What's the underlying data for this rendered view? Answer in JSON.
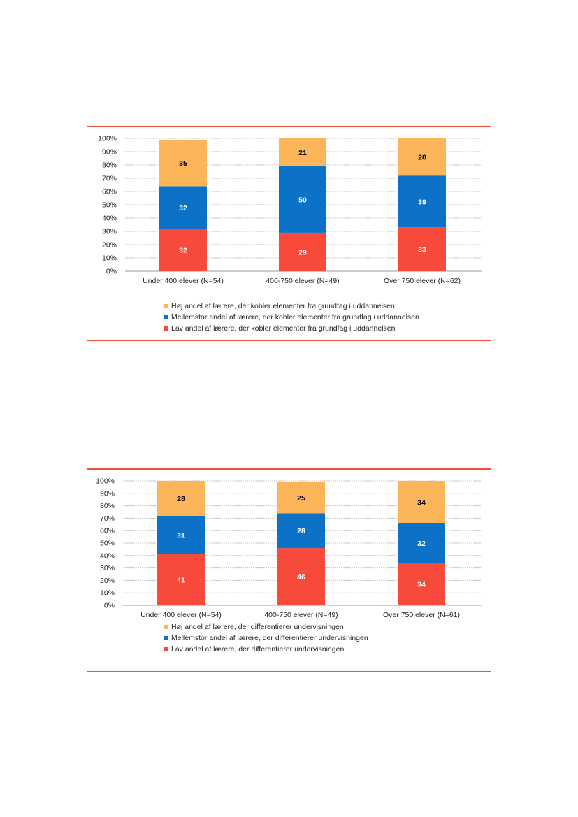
{
  "colors": {
    "hoj": "#fdb55a",
    "mellem": "#0c72c8",
    "lav": "#f74a3b",
    "grid": "#c8c8c8",
    "axis": "#999999",
    "rule": "#f04e3e"
  },
  "chart_data": [
    {
      "type": "bar",
      "stacked": true,
      "categories": [
        "Under 400 elever (N=54)",
        "400-750 elever (N=49)",
        "Over 750 elever (N=62)"
      ],
      "series": [
        {
          "name": "Lav andel af lærere, der kobler elementer fra grundfag i uddannelsen",
          "values": [
            32,
            29,
            33
          ],
          "color_key": "lav",
          "label_color": "#ffffff"
        },
        {
          "name": "Mellemstor andel af lærere,  der kobler elementer fra grundfag i uddannelsen",
          "values": [
            32,
            50,
            39
          ],
          "color_key": "mellem",
          "label_color": "#ffffff"
        },
        {
          "name": "Høj andel af lærere, der kobler elementer fra grundfag i uddannelsen",
          "values": [
            35,
            21,
            28
          ],
          "color_key": "hoj",
          "label_color": "#000000"
        }
      ],
      "legend_order": [
        2,
        1,
        0
      ],
      "ylim": [
        0,
        100
      ],
      "yticks": [
        "0%",
        "10%",
        "20%",
        "30%",
        "40%",
        "50%",
        "60%",
        "70%",
        "80%",
        "90%",
        "100%"
      ],
      "grid": true,
      "legend_position": "bottom"
    },
    {
      "type": "bar",
      "stacked": true,
      "categories": [
        "Under 400 elever (N=54)",
        "400-750 elever (N=49)",
        "Over 750 elever (N=61)"
      ],
      "series": [
        {
          "name": "Lav andel af lærere, der differentierer undervisningen",
          "values": [
            41,
            46,
            34
          ],
          "color_key": "lav",
          "label_color": "#ffffff"
        },
        {
          "name": "Mellemstor andel af lærere,  der differentierer undervisningen",
          "values": [
            31,
            28,
            32
          ],
          "color_key": "mellem",
          "label_color": "#ffffff"
        },
        {
          "name": "Høj andel af lærere, der differentierer undervisningen",
          "values": [
            28,
            25,
            34
          ],
          "color_key": "hoj",
          "label_color": "#000000"
        }
      ],
      "legend_order": [
        2,
        1,
        0
      ],
      "ylim": [
        0,
        100
      ],
      "yticks": [
        "0%",
        "10%",
        "20%",
        "30%",
        "40%",
        "50%",
        "60%",
        "70%",
        "80%",
        "90%",
        "100%"
      ],
      "grid": true,
      "legend_position": "bottom"
    }
  ]
}
